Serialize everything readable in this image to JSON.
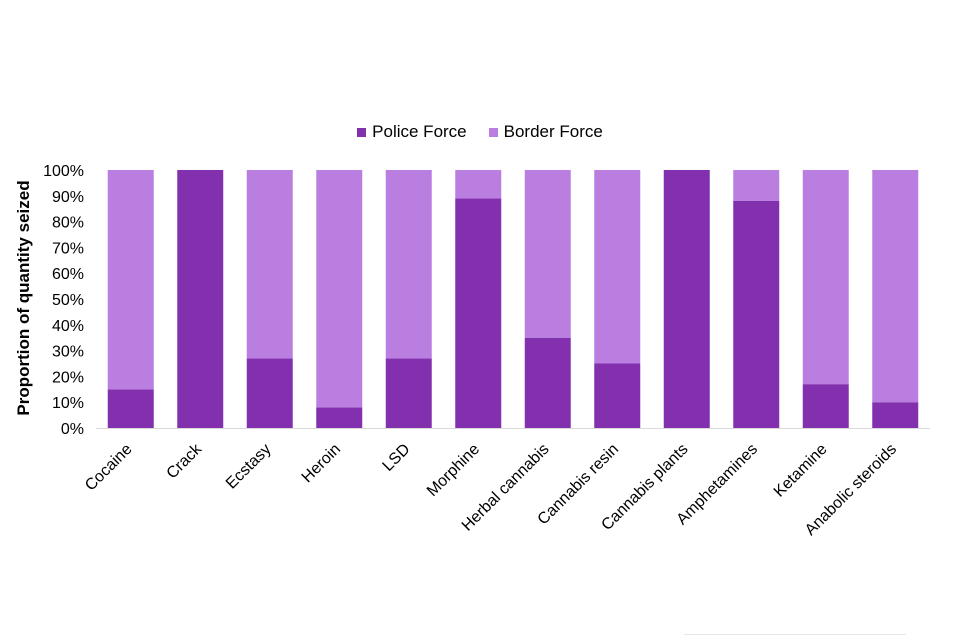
{
  "chart_data": {
    "type": "bar",
    "stacked": true,
    "categories": [
      "Cocaine",
      "Crack",
      "Ecstasy",
      "Heroin",
      "LSD",
      "Morphine",
      "Herbal cannabis",
      "Cannabis resin",
      "Cannabis plants",
      "Amphetamines",
      "Ketamine",
      "Anabolic steroids"
    ],
    "series": [
      {
        "name": "Police Force",
        "color": "#8230ad",
        "values": [
          15,
          100,
          27,
          8,
          27,
          89,
          35,
          25,
          100,
          88,
          17,
          10
        ]
      },
      {
        "name": "Border Force",
        "color": "#b97ee0",
        "values": [
          85,
          0,
          73,
          92,
          73,
          11,
          65,
          75,
          0,
          12,
          83,
          90
        ]
      }
    ],
    "ylabel": "Proportion of quantity seized",
    "yticks": [
      "0%",
      "10%",
      "20%",
      "30%",
      "40%",
      "50%",
      "60%",
      "70%",
      "80%",
      "90%",
      "100%"
    ],
    "ylim": [
      0,
      100
    ],
    "legend_position": "top-center",
    "grid": false
  }
}
